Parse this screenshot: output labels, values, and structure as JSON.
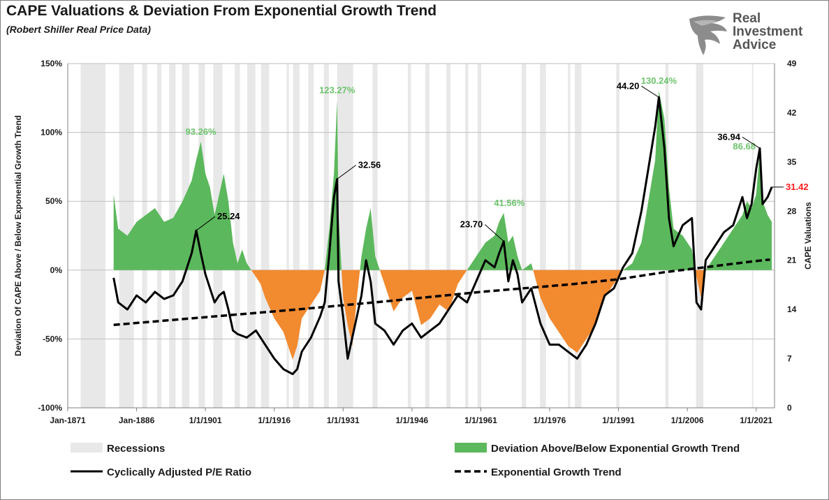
{
  "header": {
    "title": "CAPE Valuations & Deviation From Exponential Growth Trend",
    "subtitle": "(Robert Shiller Real Price Data)"
  },
  "brand": {
    "line1": "Real",
    "line2": "Investment",
    "line3": "Advice",
    "icon": "eagle-head-icon"
  },
  "colors": {
    "positive": "#5cb85c",
    "negative": "#f28a30",
    "cape": "#000000",
    "trend": "#000000",
    "recession": "#e8e8e8",
    "annotation_green": "#6cc36c",
    "annotation_red": "#ff1a1a"
  },
  "chart_data": {
    "type": "area",
    "x_range": [
      1871,
      2025
    ],
    "x_tick_labels": [
      "Jan-1871",
      "Jan-1886",
      "1/1/1901",
      "1/1/1916",
      "1/1/1931",
      "1/1/1946",
      "1/1/1961",
      "1/1/1976",
      "1/1/1991",
      "1/1/2006",
      "1/1/2021"
    ],
    "x_tick_years": [
      1871,
      1886,
      1901,
      1916,
      1931,
      1946,
      1961,
      1976,
      1991,
      2006,
      2021
    ],
    "left_axis": {
      "label": "Deviation Of CAPE Above / Below Exponential Growth Trend",
      "range": [
        -100,
        150
      ],
      "ticks": [
        "-100%",
        "-50%",
        "0%",
        "50%",
        "100%",
        "150%"
      ],
      "tick_values": [
        -100,
        -50,
        0,
        50,
        100,
        150
      ]
    },
    "right_axis": {
      "label": "CAPE Valuations",
      "range": [
        0,
        49
      ],
      "ticks": [
        "0",
        "7",
        "14",
        "21",
        "28",
        "35",
        "42",
        "49"
      ],
      "tick_values": [
        0,
        7,
        14,
        21,
        28,
        35,
        42,
        49
      ]
    },
    "gridlines": true,
    "recessions": [
      [
        1873.8,
        1879.2
      ],
      [
        1882.2,
        1885.4
      ],
      [
        1887.2,
        1888.3
      ],
      [
        1890.5,
        1891.4
      ],
      [
        1893.1,
        1894.5
      ],
      [
        1895.9,
        1897.5
      ],
      [
        1899.5,
        1900.9
      ],
      [
        1902.7,
        1904.7
      ],
      [
        1907.4,
        1908.5
      ],
      [
        1910.1,
        1911.9
      ],
      [
        1913.1,
        1914.9
      ],
      [
        1918.7,
        1919.2
      ],
      [
        1920.1,
        1921.5
      ],
      [
        1923.4,
        1924.6
      ],
      [
        1926.8,
        1927.9
      ],
      [
        1929.7,
        1933.2
      ],
      [
        1937.4,
        1938.5
      ],
      [
        1945.1,
        1945.8
      ],
      [
        1948.9,
        1949.8
      ],
      [
        1953.5,
        1954.4
      ],
      [
        1957.6,
        1958.3
      ],
      [
        1960.3,
        1961.1
      ],
      [
        1969.9,
        1970.9
      ],
      [
        1973.9,
        1975.2
      ],
      [
        1980.0,
        1980.5
      ],
      [
        1981.5,
        1982.9
      ],
      [
        1990.5,
        1991.2
      ],
      [
        2001.2,
        2001.9
      ],
      [
        2007.9,
        2009.5
      ],
      [
        2020.1,
        2020.4
      ]
    ],
    "deviation_series": {
      "name": "Deviation Above/Below Exponential Growth Trend",
      "x": [
        1881,
        1882,
        1884,
        1886,
        1888,
        1890,
        1892,
        1894,
        1896,
        1898,
        1899,
        1900,
        1901,
        1902,
        1903,
        1904,
        1905,
        1906,
        1907,
        1908,
        1909,
        1910,
        1911,
        1912,
        1913,
        1914,
        1916,
        1918,
        1920,
        1921,
        1922,
        1924,
        1926,
        1927,
        1928,
        1929,
        1929.7,
        1930,
        1931,
        1932,
        1933,
        1934,
        1935,
        1936,
        1937,
        1938,
        1940,
        1942,
        1944,
        1946,
        1948,
        1950,
        1952,
        1954,
        1956,
        1958,
        1960,
        1962,
        1964,
        1965,
        1966,
        1967,
        1968,
        1969,
        1970,
        1972,
        1974,
        1976,
        1978,
        1980,
        1982,
        1984,
        1986,
        1988,
        1990,
        1992,
        1994,
        1996,
        1998,
        1999,
        1999.8,
        2001,
        2002,
        2003,
        2005,
        2006,
        2007,
        2008,
        2009,
        2010,
        2012,
        2014,
        2016,
        2018,
        2019,
        2020,
        2021,
        2021.8,
        2022.4,
        2023.5,
        2024.4
      ],
      "values": [
        55,
        30,
        25,
        35,
        40,
        45,
        35,
        38,
        50,
        65,
        80,
        93.26,
        70,
        60,
        40,
        55,
        70,
        50,
        20,
        5,
        15,
        5,
        0,
        -5,
        -10,
        -20,
        -35,
        -45,
        -65,
        -55,
        -35,
        -25,
        -15,
        0,
        30,
        70,
        123.27,
        40,
        -20,
        -40,
        -55,
        -20,
        10,
        30,
        45,
        10,
        -10,
        -30,
        -20,
        -15,
        -40,
        -35,
        -25,
        -30,
        -10,
        0,
        10,
        20,
        25,
        35,
        41.56,
        20,
        25,
        10,
        0,
        5,
        -20,
        -35,
        -45,
        -55,
        -60,
        -50,
        -40,
        -20,
        -10,
        0,
        5,
        20,
        60,
        80,
        130.24,
        110,
        60,
        30,
        25,
        20,
        15,
        -5,
        -20,
        0,
        10,
        20,
        30,
        40,
        50,
        45,
        55,
        86.68,
        50,
        40,
        35
      ]
    },
    "cape_series": {
      "name": "Cyclically Adjusted P/E Ratio",
      "x": [
        1881,
        1882,
        1884,
        1886,
        1888,
        1890,
        1892,
        1894,
        1896,
        1898,
        1899,
        1900,
        1901,
        1902,
        1903,
        1904,
        1905,
        1906,
        1907,
        1908,
        1910,
        1912,
        1914,
        1916,
        1918,
        1920,
        1921,
        1922,
        1924,
        1926,
        1927,
        1928,
        1929,
        1929.7,
        1930,
        1931,
        1932,
        1933,
        1934,
        1935,
        1936,
        1937,
        1938,
        1940,
        1942,
        1944,
        1946,
        1948,
        1950,
        1952,
        1954,
        1956,
        1958,
        1960,
        1962,
        1964,
        1965,
        1966,
        1967,
        1968,
        1969,
        1970,
        1972,
        1974,
        1976,
        1978,
        1980,
        1982,
        1984,
        1986,
        1988,
        1990,
        1992,
        1994,
        1996,
        1998,
        1999,
        1999.8,
        2001,
        2002,
        2003,
        2005,
        2007,
        2008,
        2009,
        2010,
        2012,
        2014,
        2016,
        2018,
        2019,
        2020,
        2021,
        2021.8,
        2022.4,
        2023.5,
        2024.4
      ],
      "values": [
        18.5,
        15,
        14,
        16,
        15,
        16.5,
        15.5,
        16,
        18,
        22,
        25.24,
        22,
        19,
        17,
        15,
        16,
        16.5,
        14,
        11,
        10.5,
        10,
        11,
        9,
        7,
        5.5,
        4.8,
        5.5,
        8,
        10,
        13,
        15,
        22,
        30,
        32.56,
        18,
        13,
        7,
        10,
        13,
        16,
        21,
        18,
        12,
        11,
        9,
        11,
        12,
        10,
        11,
        12,
        14,
        16,
        15,
        18,
        21,
        20,
        22,
        23.7,
        18,
        21,
        19,
        15,
        17,
        12,
        9,
        9,
        8,
        7,
        9,
        12,
        16,
        17,
        20,
        22,
        28,
        36,
        40,
        44.2,
        37,
        27,
        23,
        26,
        27,
        15,
        14,
        21,
        23,
        25,
        26,
        30,
        27,
        29,
        34,
        36.94,
        29,
        30,
        31.42
      ]
    },
    "trend_series": {
      "name": "Exponential Growth Trend",
      "x": [
        1881,
        1901,
        1921,
        1941,
        1961,
        1981,
        1991,
        2001,
        2011,
        2021,
        2024
      ],
      "values": [
        11.8,
        12.9,
        14.0,
        15.2,
        16.5,
        17.6,
        18.3,
        19.3,
        20.1,
        20.9,
        21.1
      ]
    },
    "annotations": [
      {
        "text": "93.26%",
        "x": 1900,
        "axis": "left",
        "value": 93.26,
        "color": "green"
      },
      {
        "text": "123.27%",
        "x": 1929.7,
        "axis": "left",
        "value": 123.27,
        "color": "green"
      },
      {
        "text": "41.56%",
        "x": 1966,
        "axis": "left",
        "value": 41.56,
        "color": "green"
      },
      {
        "text": "130.24%",
        "x": 1999.8,
        "axis": "left",
        "value": 130.24,
        "color": "green"
      },
      {
        "text": "86.68",
        "x": 2021.8,
        "axis": "left",
        "value": 86.68,
        "color": "green"
      },
      {
        "text": "25.24",
        "x": 1899,
        "axis": "right",
        "value": 25.24,
        "color": "black"
      },
      {
        "text": "32.56",
        "x": 1929.7,
        "axis": "right",
        "value": 32.56,
        "color": "black"
      },
      {
        "text": "23.70",
        "x": 1966,
        "axis": "right",
        "value": 23.7,
        "color": "black"
      },
      {
        "text": "44.20",
        "x": 1999.8,
        "axis": "right",
        "value": 44.2,
        "color": "black"
      },
      {
        "text": "36.94",
        "x": 2021.8,
        "axis": "right",
        "value": 36.94,
        "color": "black"
      },
      {
        "text": "31.42",
        "x": 2024.4,
        "axis": "right",
        "value": 31.42,
        "color": "red"
      }
    ],
    "legend": [
      {
        "label": "Recessions",
        "kind": "recession"
      },
      {
        "label": "Deviation Above/Below Exponential Growth Trend",
        "kind": "deviation"
      },
      {
        "label": "Cyclically Adjusted P/E Ratio",
        "kind": "cape"
      },
      {
        "label": "Exponential Growth Trend",
        "kind": "trend"
      }
    ],
    "legend_position": "bottom"
  }
}
